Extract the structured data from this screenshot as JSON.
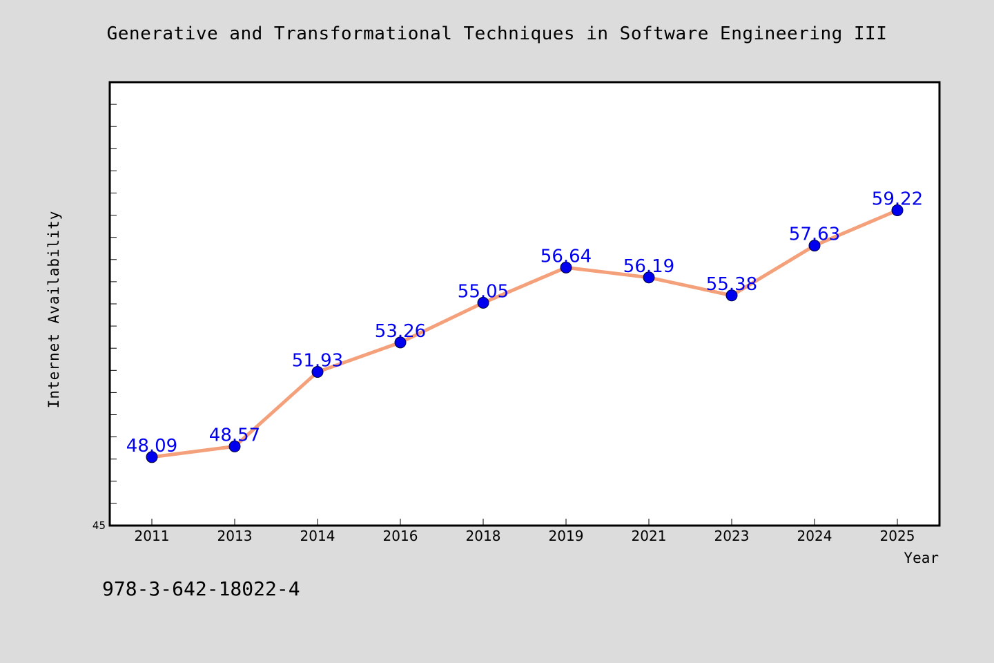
{
  "chart_data": {
    "type": "line",
    "title": "Generative and Transformational Techniques in Software Engineering III",
    "xlabel": "Year",
    "ylabel": "Internet Availability",
    "categories": [
      "2011",
      "2013",
      "2014",
      "2016",
      "2018",
      "2019",
      "2021",
      "2023",
      "2024",
      "2025"
    ],
    "series": [
      {
        "values": [
          48.09,
          48.57,
          51.93,
          53.26,
          55.05,
          56.64,
          56.19,
          55.38,
          57.63,
          59.22
        ],
        "line_color": "#f4a07a",
        "marker_color": "#0000ee",
        "label_color": "#0000ee"
      }
    ],
    "data_labels": [
      "48.09",
      "48.57",
      "51.93",
      "53.26",
      "55.05",
      "56.64",
      "56.19",
      "55.38",
      "57.63",
      "59.22"
    ],
    "y_tick_labels": [
      "45"
    ],
    "ylim": [
      45,
      65
    ],
    "y_minor_tick_step": 1,
    "grid": false,
    "legend": "none"
  },
  "footnote": "978-3-642-18022-4",
  "colors": {
    "background": "#dcdcdc",
    "plot_background": "#ffffff",
    "axis": "#000000"
  }
}
